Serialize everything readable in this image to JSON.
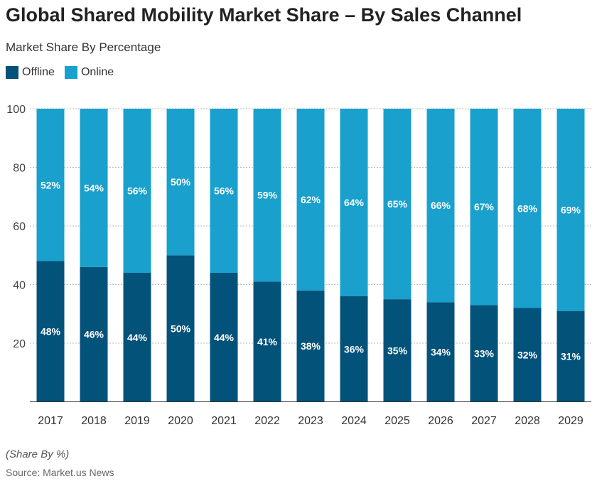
{
  "chart_data": {
    "type": "bar",
    "stacked": true,
    "title": "Global Shared Mobility Market Share – By Sales Channel",
    "subtitle": "Market Share By Percentage",
    "categories": [
      "2017",
      "2018",
      "2019",
      "2020",
      "2021",
      "2022",
      "2023",
      "2024",
      "2025",
      "2026",
      "2027",
      "2028",
      "2029"
    ],
    "series": [
      {
        "name": "Offline",
        "color": "#03527a",
        "values": [
          48,
          46,
          44,
          50,
          44,
          41,
          38,
          36,
          35,
          34,
          33,
          32,
          31
        ]
      },
      {
        "name": "Online",
        "color": "#19a0cc",
        "values": [
          52,
          54,
          56,
          50,
          56,
          59,
          62,
          64,
          65,
          66,
          67,
          68,
          69
        ]
      }
    ],
    "ylim": [
      0,
      100
    ],
    "yticks": [
      20,
      40,
      60,
      80,
      100
    ],
    "grid": true,
    "legend": "top-left",
    "note": "(Share By %)",
    "source": "Source: Market.us News"
  }
}
